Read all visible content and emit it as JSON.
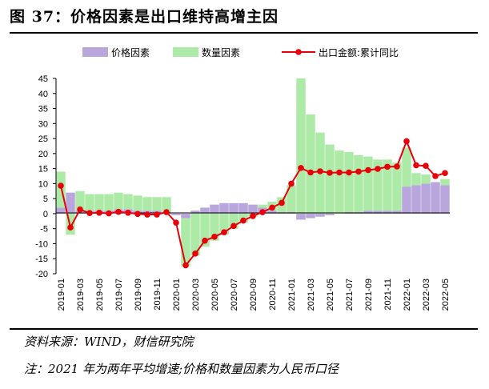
{
  "header": {
    "title": "图 37：价格因素是出口维持高增主因"
  },
  "footer": {
    "source": "资料来源：WIND，财信研究院",
    "note": "注：2021 年为两年平均增速;价格和数量因素为人民币口径"
  },
  "colors": {
    "price": "#b9a6dd",
    "quantity": "#aeeaa7",
    "line": "#e8000b",
    "marker": "#e8000b"
  },
  "chart_data": {
    "type": "bar",
    "title": "",
    "xlabel": "",
    "ylabel": "",
    "ylim": [
      -20,
      45
    ],
    "yticks": [
      -20,
      -15,
      -10,
      -5,
      0,
      5,
      10,
      15,
      20,
      25,
      30,
      35,
      40,
      45
    ],
    "grid": false,
    "legend": "top",
    "categories": [
      "2019-01",
      "2019-02",
      "2019-03",
      "2019-04",
      "2019-05",
      "2019-06",
      "2019-07",
      "2019-08",
      "2019-09",
      "2019-10",
      "2019-11",
      "2019-12",
      "2020-01",
      "2020-02",
      "2020-03",
      "2020-04",
      "2020-05",
      "2020-06",
      "2020-07",
      "2020-08",
      "2020-09",
      "2020-10",
      "2020-11",
      "2020-12",
      "2021-01",
      "2021-02",
      "2021-03",
      "2021-04",
      "2021-05",
      "2021-06",
      "2021-07",
      "2021-08",
      "2021-09",
      "2021-10",
      "2021-11",
      "2021-12",
      "2022-01",
      "2022-02",
      "2022-03",
      "2022-04",
      "2022-05"
    ],
    "xtick_labels": [
      "2019-01",
      "2019-03",
      "2019-05",
      "2019-07",
      "2019-09",
      "2019-11",
      "2020-01",
      "2020-03",
      "2020-05",
      "2020-07",
      "2020-09",
      "2020-11",
      "2021-01",
      "2021-03",
      "2021-05",
      "2021-07",
      "2021-09",
      "2021-11",
      "2022-01",
      "2022-03",
      "2022-05"
    ],
    "series": [
      {
        "name": "价格因素",
        "kind": "stacked-bar",
        "values": [
          2,
          7,
          1,
          1,
          1,
          1,
          1.5,
          1.5,
          1,
          1,
          1,
          0.5,
          -0.5,
          -1.5,
          1,
          2,
          3,
          3.5,
          3.5,
          3.5,
          3,
          2,
          1,
          0.5,
          0.5,
          -2,
          -1.5,
          -1,
          -0.5,
          0,
          0.5,
          0.5,
          1,
          1,
          1,
          1,
          9,
          9.5,
          10,
          10.5,
          9.5
        ]
      },
      {
        "name": "数量因素",
        "kind": "stacked-bar",
        "values": [
          12,
          -7,
          6.5,
          5.5,
          5.5,
          5.5,
          5.5,
          5,
          5,
          4.5,
          4.5,
          5,
          0,
          -16,
          -14,
          -11,
          -9,
          -7,
          -5,
          -3,
          -1,
          1,
          3,
          5,
          9,
          45,
          33,
          27,
          23,
          21,
          20,
          19,
          18,
          17,
          17,
          16,
          13,
          4,
          3,
          0,
          2
        ]
      },
      {
        "name": "出口金额:累计同比",
        "kind": "line",
        "values": [
          9.3,
          -4.6,
          1.4,
          0.2,
          0.3,
          0.1,
          0.6,
          0.3,
          -0.1,
          -0.3,
          -0.3,
          0.5,
          -3.0,
          -17.2,
          -13.3,
          -9.0,
          -7.7,
          -6.2,
          -4.1,
          -2.3,
          -0.8,
          0.5,
          2.0,
          3.6,
          10.0,
          15.2,
          13.7,
          14.1,
          13.6,
          13.7,
          13.7,
          14.0,
          14.5,
          14.9,
          15.6,
          15.7,
          24.1,
          16.1,
          15.9,
          12.5,
          13.5
        ]
      }
    ]
  }
}
